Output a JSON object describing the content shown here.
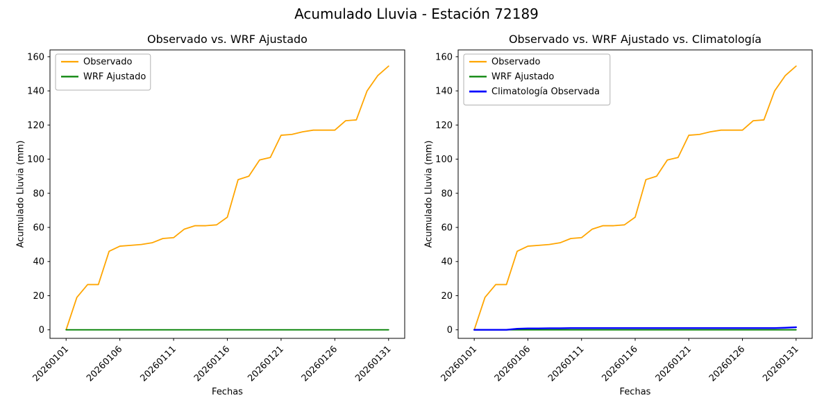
{
  "figure": {
    "title": "Acumulado Lluvia - Estación 72189"
  },
  "colors": {
    "observado": "#FFA500",
    "wrf": "#008000",
    "climatologia": "#0000FF",
    "axis": "#000000",
    "legend_border": "#b0b0b0"
  },
  "chart_data": [
    {
      "type": "line",
      "title": "Observado vs. WRF Ajustado",
      "xlabel": "Fechas",
      "ylabel": "Acumulado Lluvia (mm)",
      "grid": false,
      "legend_position": "upper left",
      "ylim": [
        0,
        160
      ],
      "y_ticks": [
        0,
        20,
        40,
        60,
        80,
        100,
        120,
        140,
        160
      ],
      "x_tick_labels": [
        "20260101",
        "20260106",
        "20260111",
        "20260116",
        "20260121",
        "20260126",
        "20260131"
      ],
      "categories": [
        "20260101",
        "20260102",
        "20260103",
        "20260104",
        "20260105",
        "20260106",
        "20260107",
        "20260108",
        "20260109",
        "20260110",
        "20260111",
        "20260112",
        "20260113",
        "20260114",
        "20260115",
        "20260116",
        "20260117",
        "20260118",
        "20260119",
        "20260120",
        "20260121",
        "20260122",
        "20260123",
        "20260124",
        "20260125",
        "20260126",
        "20260127",
        "20260128",
        "20260129",
        "20260130",
        "20260131"
      ],
      "series": [
        {
          "name": "Observado",
          "color": "#FFA500",
          "width": 1.8,
          "values": [
            0,
            19,
            26.5,
            26.5,
            46,
            49,
            49.5,
            50,
            51,
            53.5,
            54,
            59,
            61,
            61,
            61.5,
            66,
            88,
            90,
            99.5,
            101,
            114,
            114.5,
            116,
            117,
            117,
            117,
            122.5,
            123,
            140,
            149,
            154.5
          ]
        },
        {
          "name": "WRF Ajustado",
          "color": "#008000",
          "width": 1.8,
          "values": [
            0,
            0,
            0,
            0,
            0,
            0,
            0,
            0,
            0,
            0,
            0,
            0,
            0,
            0,
            0,
            0,
            0,
            0,
            0,
            0,
            0,
            0,
            0,
            0,
            0,
            0,
            0,
            0,
            0,
            0,
            0
          ]
        }
      ]
    },
    {
      "type": "line",
      "title": "Observado vs. WRF Ajustado vs. Climatología",
      "xlabel": "Fechas",
      "ylabel": "Acumulado Lluvia (mm)",
      "grid": false,
      "legend_position": "upper left",
      "ylim": [
        0,
        160
      ],
      "y_ticks": [
        0,
        20,
        40,
        60,
        80,
        100,
        120,
        140,
        160
      ],
      "x_tick_labels": [
        "20260101",
        "20260106",
        "20260111",
        "20260116",
        "20260121",
        "20260126",
        "20260131"
      ],
      "categories": [
        "20260101",
        "20260102",
        "20260103",
        "20260104",
        "20260105",
        "20260106",
        "20260107",
        "20260108",
        "20260109",
        "20260110",
        "20260111",
        "20260112",
        "20260113",
        "20260114",
        "20260115",
        "20260116",
        "20260117",
        "20260118",
        "20260119",
        "20260120",
        "20260121",
        "20260122",
        "20260123",
        "20260124",
        "20260125",
        "20260126",
        "20260127",
        "20260128",
        "20260129",
        "20260130",
        "20260131"
      ],
      "series": [
        {
          "name": "Observado",
          "color": "#FFA500",
          "width": 1.8,
          "values": [
            0,
            19,
            26.5,
            26.5,
            46,
            49,
            49.5,
            50,
            51,
            53.5,
            54,
            59,
            61,
            61,
            61.5,
            66,
            88,
            90,
            99.5,
            101,
            114,
            114.5,
            116,
            117,
            117,
            117,
            122.5,
            123,
            140,
            149,
            154.5
          ]
        },
        {
          "name": "WRF Ajustado",
          "color": "#008000",
          "width": 1.8,
          "values": [
            0,
            0,
            0,
            0,
            0,
            0,
            0,
            0,
            0,
            0,
            0,
            0,
            0,
            0,
            0,
            0,
            0,
            0,
            0,
            0,
            0,
            0,
            0,
            0,
            0,
            0,
            0,
            0,
            0,
            0,
            0
          ]
        },
        {
          "name": "Climatología Observada",
          "color": "#0000FF",
          "width": 2.4,
          "values": [
            0,
            0,
            0,
            0,
            0.6,
            0.8,
            0.8,
            0.9,
            0.9,
            1,
            1,
            1,
            1,
            1,
            1,
            1,
            1,
            1,
            1,
            1,
            1,
            1,
            1,
            1,
            1,
            1,
            1,
            1,
            1,
            1.2,
            1.5
          ]
        }
      ]
    }
  ]
}
